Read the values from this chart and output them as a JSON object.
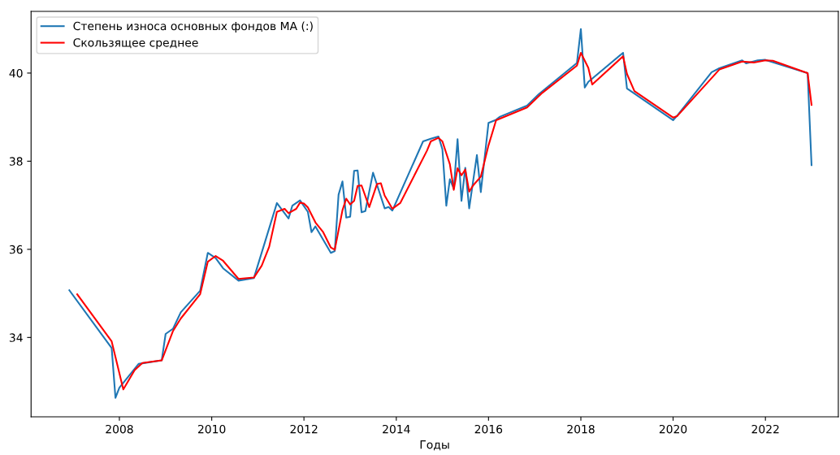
{
  "chart_data": {
    "type": "line",
    "xlabel": "Годы",
    "xlim": [
      "2006-02",
      "2023-08"
    ],
    "ylim": [
      32.2,
      41.4
    ],
    "xticks": [
      {
        "value": "2008",
        "label": "2008"
      },
      {
        "value": "2010",
        "label": "2010"
      },
      {
        "value": "2012",
        "label": "2012"
      },
      {
        "value": "2014",
        "label": "2014"
      },
      {
        "value": "2016",
        "label": "2016"
      },
      {
        "value": "2018",
        "label": "2018"
      },
      {
        "value": "2020",
        "label": "2020"
      },
      {
        "value": "2022",
        "label": "2022"
      }
    ],
    "yticks": [
      34,
      36,
      38,
      40
    ],
    "grid": false,
    "legend": "top left",
    "series": [
      {
        "name": "Степень износа основных фондов МА (:)",
        "color": "#1f77b4",
        "x": [
          "2006-12",
          "2007-11",
          "2007-12",
          "2008-01",
          "2008-06",
          "2008-12",
          "2009-01",
          "2009-03",
          "2009-05",
          "2009-10",
          "2009-12",
          "2010-02",
          "2010-04",
          "2010-08",
          "2010-12",
          "2011-06",
          "2011-09",
          "2011-10",
          "2011-12",
          "2012-02",
          "2012-03",
          "2012-04",
          "2012-08",
          "2012-09",
          "2012-10",
          "2012-11",
          "2012-12",
          "2013-01",
          "2013-02",
          "2013-03",
          "2013-04",
          "2013-05",
          "2013-07",
          "2013-10",
          "2013-11",
          "2013-12",
          "2014-08",
          "2014-10",
          "2014-12",
          "2015-01",
          "2015-02",
          "2015-03",
          "2015-04",
          "2015-05",
          "2015-06",
          "2015-07",
          "2015-08",
          "2015-10",
          "2015-11",
          "2016-01",
          "2016-03",
          "2016-04",
          "2016-11",
          "2017-02",
          "2017-12",
          "2018-01",
          "2018-02",
          "2018-03",
          "2018-12",
          "2019-01",
          "2020-01",
          "2020-02",
          "2020-11",
          "2021-01",
          "2021-07",
          "2021-08",
          "2021-11",
          "2022-01",
          "2022-12",
          "2023-01"
        ],
        "values": [
          35.07,
          33.76,
          32.63,
          32.86,
          33.4,
          33.48,
          34.08,
          34.2,
          34.57,
          35.06,
          35.92,
          35.8,
          35.57,
          35.29,
          35.35,
          37.05,
          36.7,
          36.99,
          37.11,
          36.85,
          36.39,
          36.52,
          35.92,
          35.96,
          37.24,
          37.54,
          36.72,
          36.74,
          37.78,
          37.79,
          36.84,
          36.87,
          37.74,
          36.93,
          36.96,
          36.88,
          38.45,
          38.51,
          38.56,
          38.27,
          36.99,
          37.59,
          37.38,
          38.5,
          37.1,
          37.85,
          36.93,
          38.14,
          37.3,
          38.87,
          38.94,
          39.01,
          39.26,
          39.52,
          40.23,
          41.0,
          39.67,
          39.8,
          40.46,
          39.65,
          38.93,
          39.03,
          40.02,
          40.11,
          40.29,
          40.22,
          40.29,
          40.3,
          40.0,
          37.91
        ]
      },
      {
        "name": "Скользящее среднее",
        "color": "#ff0000",
        "x": [
          "2007-02",
          "2007-11",
          "2008-02",
          "2008-05",
          "2008-07",
          "2008-12",
          "2009-03",
          "2009-05",
          "2009-10",
          "2009-12",
          "2010-02",
          "2010-04",
          "2010-08",
          "2010-12",
          "2011-02",
          "2011-04",
          "2011-06",
          "2011-08",
          "2011-09",
          "2011-11",
          "2011-12",
          "2012-01",
          "2012-02",
          "2012-04",
          "2012-06",
          "2012-08",
          "2012-09",
          "2012-11",
          "2012-12",
          "2013-01",
          "2013-02",
          "2013-03",
          "2013-04",
          "2013-06",
          "2013-08",
          "2013-09",
          "2013-10",
          "2013-12",
          "2014-02",
          "2014-09",
          "2014-10",
          "2014-12",
          "2015-01",
          "2015-03",
          "2015-04",
          "2015-05",
          "2015-06",
          "2015-07",
          "2015-08",
          "2015-09",
          "2015-11",
          "2016-01",
          "2016-03",
          "2016-11",
          "2017-03",
          "2017-12",
          "2018-01",
          "2018-03",
          "2018-04",
          "2018-12",
          "2019-01",
          "2019-03",
          "2020-01",
          "2020-02",
          "2021-01",
          "2021-07",
          "2021-10",
          "2022-01",
          "2022-03",
          "2022-12",
          "2023-01"
        ],
        "values": [
          34.98,
          33.91,
          32.82,
          33.26,
          33.42,
          33.48,
          34.15,
          34.43,
          34.98,
          35.72,
          35.85,
          35.74,
          35.33,
          35.36,
          35.63,
          36.06,
          36.85,
          36.92,
          36.82,
          36.92,
          37.06,
          37.04,
          36.95,
          36.61,
          36.39,
          36.04,
          35.99,
          36.89,
          37.15,
          37.02,
          37.1,
          37.44,
          37.45,
          36.96,
          37.48,
          37.5,
          37.22,
          36.92,
          37.05,
          38.24,
          38.45,
          38.53,
          38.45,
          37.93,
          37.35,
          37.84,
          37.68,
          37.81,
          37.31,
          37.45,
          37.65,
          38.36,
          38.93,
          39.22,
          39.55,
          40.17,
          40.46,
          40.12,
          39.74,
          40.38,
          39.98,
          39.59,
          38.99,
          39.02,
          40.08,
          40.26,
          40.24,
          40.29,
          40.28,
          40.0,
          39.28
        ]
      }
    ]
  }
}
